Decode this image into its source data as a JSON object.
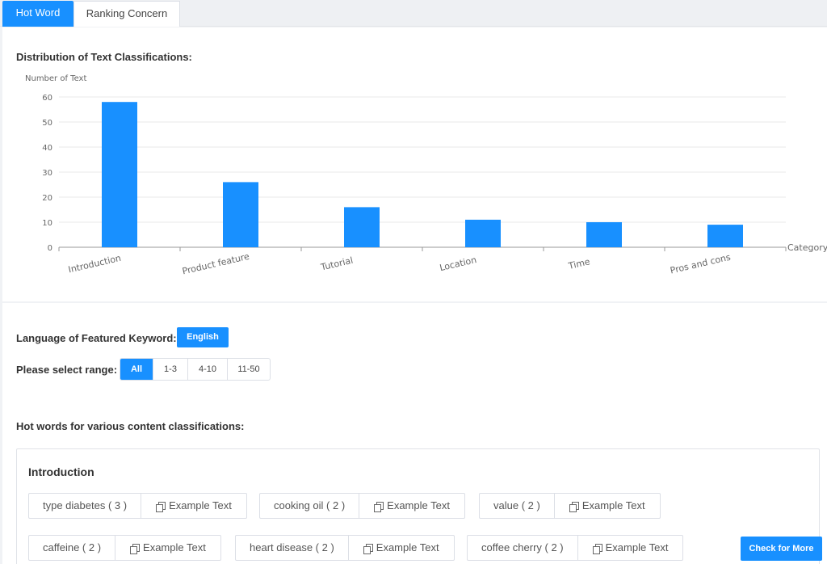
{
  "tabs": [
    {
      "label": "Hot Word",
      "active": true
    },
    {
      "label": "Ranking Concern",
      "active": false
    }
  ],
  "distribution": {
    "title": "Distribution of Text Classifications:"
  },
  "chart_data": {
    "type": "bar",
    "title": "",
    "ylabel": "Number of Text",
    "xlabel": "Category",
    "categories": [
      "Introduction",
      "Product feature",
      "Tutorial",
      "Location",
      "Time",
      "Pros and cons"
    ],
    "values": [
      58,
      26,
      16,
      11,
      10,
      9
    ],
    "ylim": [
      0,
      60
    ],
    "yticks": [
      0,
      10,
      20,
      30,
      40,
      50,
      60
    ],
    "grid": true,
    "bar_color": "#1890ff"
  },
  "filters": {
    "language_label": "Language of Featured Keyword:",
    "language_value": "English",
    "range_label": "Please select range:",
    "range_options": [
      {
        "label": "All",
        "active": true
      },
      {
        "label": "1-3",
        "active": false
      },
      {
        "label": "4-10",
        "active": false
      },
      {
        "label": "11-50",
        "active": false
      }
    ]
  },
  "hotwords": {
    "title": "Hot words for various content classifications:",
    "groups": [
      {
        "name": "Introduction",
        "items": [
          {
            "word": "type diabetes ( 3 )",
            "example": "Example Text"
          },
          {
            "word": "cooking oil ( 2 )",
            "example": "Example Text"
          },
          {
            "word": "value ( 2 )",
            "example": "Example Text"
          },
          {
            "word": "caffeine ( 2 )",
            "example": "Example Text"
          },
          {
            "word": "heart disease ( 2 )",
            "example": "Example Text"
          },
          {
            "word": "coffee cherry ( 2 )",
            "example": "Example Text"
          }
        ],
        "more_label": "Check for More"
      }
    ]
  },
  "colors": {
    "accent": "#1890ff"
  }
}
